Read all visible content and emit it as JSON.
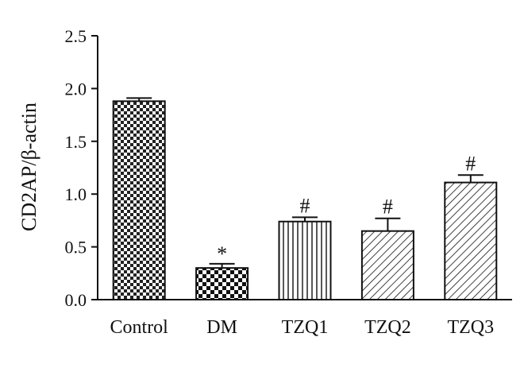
{
  "chart_data": {
    "type": "bar",
    "categories": [
      "Control",
      "DM",
      "TZQ1",
      "TZQ2",
      "TZQ3"
    ],
    "values": [
      1.88,
      0.3,
      0.74,
      0.65,
      1.11
    ],
    "errors": [
      0.03,
      0.04,
      0.04,
      0.12,
      0.07
    ],
    "annotations": [
      "",
      "*",
      "#",
      "#",
      "#"
    ],
    "patterns": [
      "checker-large",
      "checker-small",
      "vertical-lines",
      "diagonal-lines",
      "diagonal-lines"
    ],
    "yticks": [
      "0.0",
      "0.5",
      "1.0",
      "1.5",
      "2.0",
      "2.5"
    ],
    "ylim": [
      0,
      2.5
    ],
    "ylabel": "CD2AP/β-actin",
    "xlabel": "",
    "title": "",
    "grid": false
  }
}
